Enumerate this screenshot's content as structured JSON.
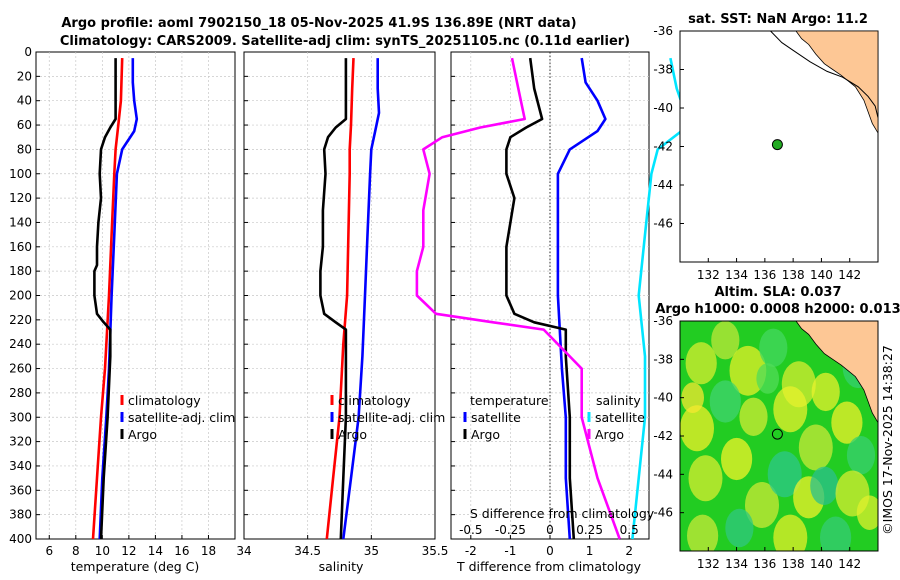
{
  "title": {
    "line1": "Argo profile: aoml 7902150_18 05-Nov-2025 41.9S 136.89E (NRT data)",
    "line2": "Climatology: CARS2009. Satellite-adj clim: synTS_20251105.nc (0.11d earlier)"
  },
  "watermark": "©IMOS 17-Nov-2025 14:38:27",
  "colors": {
    "climatology": "#ff0000",
    "satellite": "#0000ff",
    "argo": "#000000",
    "salinity_satellite": "#00e5ff",
    "salinity_argo": "#ff00ff",
    "land": "#fdc795",
    "sla_base": "#22cc22"
  },
  "chart_data": [
    {
      "id": "temperature",
      "type": "line",
      "xlabel": "temperature (deg C)",
      "xlim": [
        5,
        20
      ],
      "ylim": [
        0,
        400
      ],
      "xticks": [
        6,
        8,
        10,
        12,
        14,
        16,
        18
      ],
      "yticks": [
        0,
        20,
        40,
        60,
        80,
        100,
        120,
        140,
        160,
        180,
        200,
        220,
        240,
        260,
        280,
        300,
        320,
        340,
        360,
        380,
        400
      ],
      "legend": [
        "climatology",
        "satellite-adj. clim",
        "Argo"
      ],
      "series": [
        {
          "name": "climatology",
          "color": "#ff0000",
          "depth": [
            5,
            40,
            60,
            80,
            100,
            150,
            200,
            260,
            300,
            350,
            400
          ],
          "values": [
            11.5,
            11.4,
            11.2,
            11.0,
            10.9,
            10.7,
            10.5,
            10.2,
            9.9,
            9.6,
            9.3
          ]
        },
        {
          "name": "satellite-adj. clim",
          "color": "#0000ff",
          "depth": [
            5,
            25,
            40,
            55,
            65,
            80,
            100,
            150,
            200,
            260,
            300,
            350,
            400
          ],
          "values": [
            12.3,
            12.3,
            12.4,
            12.6,
            12.4,
            11.5,
            11.1,
            10.9,
            10.7,
            10.5,
            10.3,
            10.0,
            9.8
          ]
        },
        {
          "name": "Argo",
          "color": "#000000",
          "depth": [
            5,
            30,
            55,
            62,
            70,
            80,
            100,
            120,
            140,
            160,
            175,
            180,
            200,
            215,
            222,
            228,
            250,
            300,
            350,
            400
          ],
          "values": [
            11.0,
            11.0,
            11.0,
            10.6,
            10.2,
            9.9,
            9.8,
            9.9,
            9.7,
            9.6,
            9.6,
            9.4,
            9.4,
            9.6,
            10.1,
            10.6,
            10.6,
            10.4,
            10.1,
            9.9
          ]
        }
      ]
    },
    {
      "id": "salinity",
      "type": "line",
      "xlabel": "salinity",
      "xlim": [
        34,
        35.5
      ],
      "ylim": [
        0,
        400
      ],
      "xticks": [
        34,
        34.5,
        35,
        35.5
      ],
      "legend": [
        "climatology",
        "satellite-adj. clim",
        "Argo"
      ],
      "series": [
        {
          "name": "climatology",
          "color": "#ff0000",
          "depth": [
            5,
            30,
            60,
            80,
            100,
            150,
            200,
            240,
            300,
            350,
            400
          ],
          "values": [
            34.86,
            34.85,
            34.84,
            34.83,
            34.83,
            34.82,
            34.81,
            34.78,
            34.75,
            34.7,
            34.65
          ]
        },
        {
          "name": "satellite-adj. clim",
          "color": "#0000ff",
          "depth": [
            5,
            30,
            50,
            65,
            80,
            100,
            150,
            200,
            250,
            300,
            350,
            400
          ],
          "values": [
            35.05,
            35.05,
            35.06,
            35.03,
            35.0,
            34.99,
            34.97,
            34.95,
            34.93,
            34.9,
            34.84,
            34.78
          ]
        },
        {
          "name": "Argo",
          "color": "#000000",
          "depth": [
            5,
            30,
            55,
            62,
            70,
            80,
            100,
            130,
            160,
            180,
            200,
            215,
            222,
            228,
            260,
            300,
            350,
            400
          ],
          "values": [
            34.8,
            34.8,
            34.8,
            34.72,
            34.66,
            34.63,
            34.64,
            34.62,
            34.62,
            34.6,
            34.6,
            34.63,
            34.72,
            34.8,
            34.8,
            34.8,
            34.78,
            34.76
          ]
        }
      ]
    },
    {
      "id": "difference",
      "type": "line",
      "xlabel": "T difference from climatology",
      "xlabel_top": "S difference from climatology",
      "xlim": [
        -2.5,
        2.5
      ],
      "ylim": [
        0,
        400
      ],
      "xticks": [
        -2,
        -1,
        0,
        1,
        2
      ],
      "xticks_s": [
        "-0.5",
        "-0.25",
        "0",
        "0.25",
        "0.5"
      ],
      "legend_left_title": "temperature",
      "legend_left": [
        "satellite",
        "Argo"
      ],
      "legend_right_title": "salinity",
      "legend_right": [
        "satellite",
        "Argo"
      ],
      "series": [
        {
          "name": "temperature satellite",
          "color": "#0000ff",
          "depth": [
            5,
            25,
            40,
            55,
            65,
            80,
            100,
            150,
            200,
            260,
            300,
            350,
            400
          ],
          "values": [
            0.8,
            0.9,
            1.2,
            1.4,
            1.2,
            0.5,
            0.2,
            0.2,
            0.2,
            0.3,
            0.4,
            0.4,
            0.5
          ]
        },
        {
          "name": "temperature Argo",
          "color": "#000000",
          "depth": [
            5,
            30,
            55,
            62,
            70,
            80,
            100,
            120,
            140,
            160,
            180,
            200,
            215,
            222,
            228,
            250,
            300,
            350,
            400
          ],
          "values": [
            -0.5,
            -0.4,
            -0.2,
            -0.6,
            -1.0,
            -1.1,
            -1.1,
            -0.9,
            -1.0,
            -1.1,
            -1.1,
            -1.1,
            -0.9,
            -0.4,
            0.4,
            0.4,
            0.5,
            0.5,
            0.6
          ]
        },
        {
          "name": "salinity satellite",
          "color": "#00e5ff",
          "depth": [
            5,
            30,
            60,
            80,
            100,
            150,
            200,
            250,
            300,
            350,
            400
          ],
          "values": [
            0.76,
            0.8,
            0.88,
            0.68,
            0.64,
            0.6,
            0.56,
            0.6,
            0.6,
            0.56,
            0.52
          ]
        },
        {
          "name": "salinity Argo",
          "color": "#ff00ff",
          "depth": [
            5,
            30,
            55,
            62,
            70,
            80,
            100,
            130,
            160,
            180,
            200,
            215,
            222,
            228,
            260,
            300,
            350,
            400
          ],
          "values": [
            -0.24,
            -0.2,
            -0.16,
            -0.44,
            -0.68,
            -0.8,
            -0.76,
            -0.8,
            -0.8,
            -0.84,
            -0.84,
            -0.72,
            -0.36,
            -0.04,
            0.2,
            0.2,
            0.3,
            0.44
          ]
        }
      ]
    },
    {
      "id": "sst_map",
      "type": "map",
      "title": "sat. SST: NaN Argo: 11.2",
      "xlim": [
        130,
        144
      ],
      "ylim": [
        -48,
        -36
      ],
      "xticks": [
        132,
        134,
        136,
        138,
        140,
        142
      ],
      "yticks": [
        -36,
        -38,
        -40,
        -42,
        -44,
        -46
      ],
      "argo_position": {
        "lon": 136.89,
        "lat": -41.9
      },
      "coast_lon": [
        138.2,
        138.6,
        139.1,
        139.6,
        140.2,
        140.8,
        141.4,
        141.9,
        142.4,
        143.0,
        143.6,
        144.0
      ],
      "coast_lat": [
        -36.0,
        -36.4,
        -36.7,
        -37.2,
        -37.7,
        -38.0,
        -38.3,
        -38.6,
        -38.9,
        -39.6,
        -40.8,
        -41.3
      ]
    },
    {
      "id": "sla_map",
      "type": "map",
      "title": "Altim. SLA: 0.037",
      "subtitle": "Argo h1000: 0.0008 h2000: 0.013",
      "xlim": [
        130,
        144
      ],
      "ylim": [
        -48,
        -36
      ],
      "xticks": [
        132,
        134,
        136,
        138,
        140,
        142
      ],
      "yticks": [
        -36,
        -38,
        -40,
        -42,
        -44,
        -46
      ],
      "argo_position": {
        "lon": 136.89,
        "lat": -41.9
      }
    }
  ]
}
